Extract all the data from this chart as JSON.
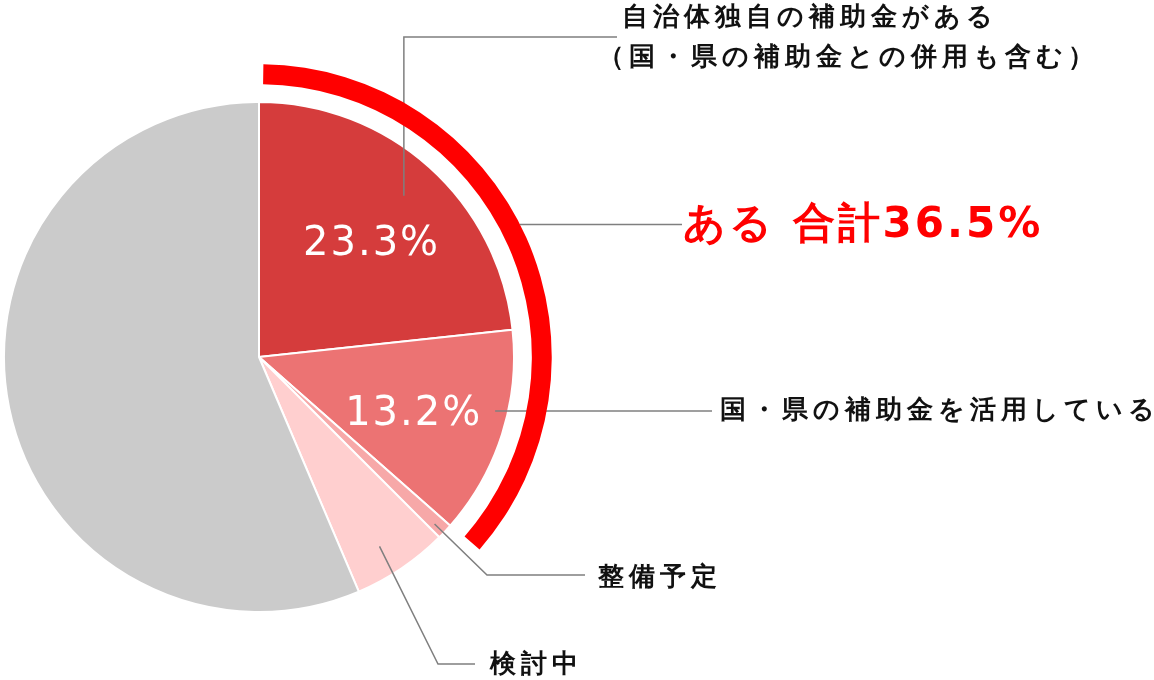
{
  "chart_data": {
    "type": "pie",
    "categories": [
      "自治体独自の補助金がある（国・県の補助金との併用も含む）",
      "国・県の補助金を活用している",
      "整備予定",
      "検討中",
      null
    ],
    "values": [
      23.3,
      13.2,
      1.0,
      6.1,
      56.4
    ],
    "colors": [
      "#d53c3c",
      "#ec7373",
      "#f7a8a8",
      "#ffcfcf",
      "#cbcbcb"
    ],
    "value_labels": [
      "23.3%",
      "13.2%",
      null,
      null,
      null
    ],
    "annotations": [
      "ある 合計36.5%"
    ]
  }
}
